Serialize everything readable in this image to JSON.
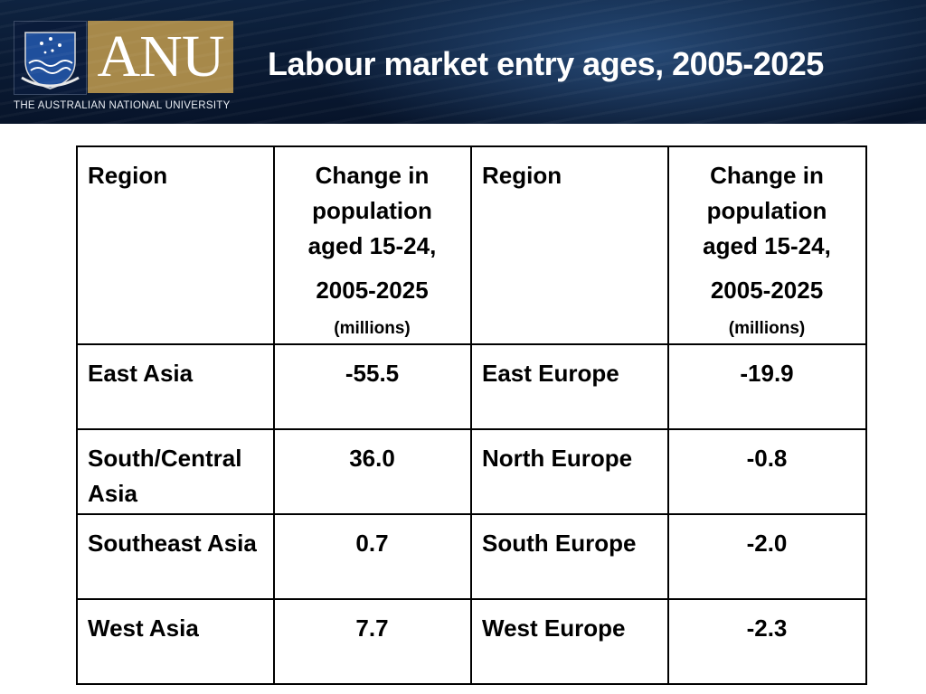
{
  "header": {
    "logo_text": "ANU",
    "university_name": "THE AUSTRALIAN NATIONAL UNIVERSITY",
    "title": "Labour market entry ages, 2005-2025"
  },
  "table": {
    "headers": {
      "region": "Region",
      "change_line1": "Change in population aged 15-24,",
      "change_years": "2005-2025",
      "change_unit": "(millions)"
    },
    "rows": [
      {
        "region_left": "East Asia",
        "value_left": "-55.5",
        "region_right": "East Europe",
        "value_right": "-19.9"
      },
      {
        "region_left": "South/Central Asia",
        "value_left": "36.0",
        "region_right": "North Europe",
        "value_right": "-0.8"
      },
      {
        "region_left": "Southeast Asia",
        "value_left": "0.7",
        "region_right": "South Europe",
        "value_right": "-2.0"
      },
      {
        "region_left": "West Asia",
        "value_left": "7.7",
        "region_right": "West Europe",
        "value_right": "-2.3"
      }
    ]
  },
  "colors": {
    "header_bg": "#0a1a33",
    "anu_gold": "#a7894a",
    "crest_blue": "#0a1b3a"
  }
}
